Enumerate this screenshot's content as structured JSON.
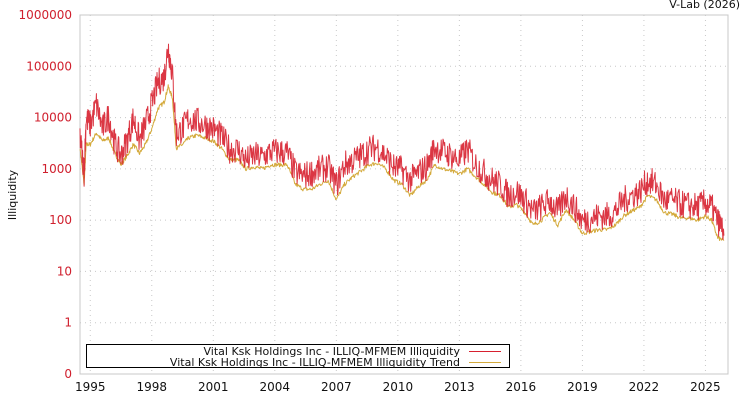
{
  "credit": "V-Lab (2026)",
  "chart_data": {
    "type": "line",
    "title": "",
    "xlabel": "",
    "ylabel": "Illiquidity",
    "yscale": "log",
    "ylim": [
      0,
      1000000
    ],
    "yticks": [
      "1000000",
      "100000",
      "10000",
      "1000",
      "100",
      "10",
      "1",
      "0"
    ],
    "xticks": [
      "1995",
      "1998",
      "2001",
      "2004",
      "2007",
      "2010",
      "2013",
      "2016",
      "2019",
      "2022",
      "2025"
    ],
    "xlim": [
      1994.5,
      2026.1
    ],
    "grid": true,
    "legend_position": "bottom-left inside plot",
    "colors": {
      "illiquidity": "#d7202f",
      "trend": "#d4aa3c",
      "ytick": "#d0202e",
      "grid": "#c8c8c8"
    },
    "series": [
      {
        "name": "Vital Ksk Holdings Inc - ILLIQ-MFMEM Illiquidity",
        "x": [
          1994.5,
          1994.7,
          1994.8,
          1995.0,
          1995.3,
          1995.6,
          1995.9,
          1996.2,
          1996.5,
          1996.8,
          1997.1,
          1997.4,
          1997.7,
          1998.0,
          1998.3,
          1998.6,
          1998.8,
          1999.0,
          1999.2,
          1999.5,
          1999.8,
          2000.2,
          2000.6,
          2001.0,
          2001.4,
          2001.8,
          2002.2,
          2002.6,
          2003.0,
          2003.4,
          2003.8,
          2004.2,
          2004.6,
          2005.0,
          2005.4,
          2005.8,
          2006.2,
          2006.6,
          2007.0,
          2007.4,
          2007.8,
          2008.2,
          2008.6,
          2009.0,
          2009.4,
          2009.8,
          2010.2,
          2010.6,
          2011.0,
          2011.4,
          2011.8,
          2012.2,
          2012.6,
          2013.0,
          2013.4,
          2013.8,
          2014.2,
          2014.6,
          2015.0,
          2015.4,
          2015.8,
          2016.2,
          2016.6,
          2017.0,
          2017.4,
          2017.8,
          2018.2,
          2018.6,
          2019.0,
          2019.4,
          2019.8,
          2020.2,
          2020.6,
          2021.0,
          2021.4,
          2021.8,
          2022.2,
          2022.6,
          2023.0,
          2023.4,
          2023.8,
          2024.2,
          2024.6,
          2025.0,
          2025.3,
          2025.6,
          2025.9
        ],
        "values": [
          3500,
          700,
          8000,
          6000,
          15000,
          5000,
          9000,
          2500,
          1500,
          3000,
          8000,
          3000,
          6000,
          15000,
          40000,
          50000,
          200000,
          60000,
          4000,
          5000,
          8000,
          7000,
          6000,
          5000,
          3500,
          2000,
          2000,
          1200,
          1500,
          1400,
          1800,
          1800,
          1700,
          700,
          600,
          700,
          800,
          900,
          400,
          1000,
          1200,
          1500,
          2000,
          2200,
          1500,
          900,
          800,
          500,
          700,
          900,
          2200,
          1800,
          1500,
          1200,
          2000,
          1000,
          700,
          500,
          400,
          250,
          300,
          200,
          120,
          150,
          200,
          120,
          250,
          150,
          80,
          90,
          100,
          100,
          120,
          200,
          250,
          300,
          500,
          400,
          200,
          200,
          170,
          160,
          150,
          180,
          150,
          80,
          50
        ]
      },
      {
        "name": "Vital Ksk Holdings Inc - ILLIQ-MFMEM Illiquidity Trend",
        "x": [
          1994.5,
          1994.7,
          1994.8,
          1995.0,
          1995.3,
          1995.6,
          1995.9,
          1996.2,
          1996.5,
          1996.8,
          1997.1,
          1997.4,
          1997.7,
          1998.0,
          1998.3,
          1998.6,
          1998.8,
          1999.0,
          1999.2,
          1999.5,
          1999.8,
          2000.2,
          2000.6,
          2001.0,
          2001.4,
          2001.8,
          2002.2,
          2002.6,
          2003.0,
          2003.4,
          2003.8,
          2004.2,
          2004.6,
          2005.0,
          2005.4,
          2005.8,
          2006.2,
          2006.6,
          2007.0,
          2007.4,
          2007.8,
          2008.2,
          2008.6,
          2009.0,
          2009.4,
          2009.8,
          2010.2,
          2010.6,
          2011.0,
          2011.4,
          2011.8,
          2012.2,
          2012.6,
          2013.0,
          2013.4,
          2013.8,
          2014.2,
          2014.6,
          2015.0,
          2015.4,
          2015.8,
          2016.2,
          2016.6,
          2017.0,
          2017.4,
          2017.8,
          2018.2,
          2018.6,
          2019.0,
          2019.4,
          2019.8,
          2020.2,
          2020.6,
          2021.0,
          2021.4,
          2021.8,
          2022.2,
          2022.6,
          2023.0,
          2023.4,
          2023.8,
          2024.2,
          2024.6,
          2025.0,
          2025.3,
          2025.6,
          2025.9
        ],
        "values": [
          2500,
          500,
          3000,
          3000,
          5000,
          3500,
          4000,
          2000,
          1200,
          1800,
          3000,
          2000,
          3000,
          6000,
          15000,
          20000,
          40000,
          25000,
          2500,
          3000,
          4000,
          4500,
          4000,
          3500,
          2500,
          1500,
          1500,
          1000,
          1100,
          1000,
          1200,
          1200,
          1200,
          500,
          400,
          400,
          500,
          600,
          250,
          500,
          700,
          900,
          1200,
          1300,
          1000,
          600,
          500,
          300,
          450,
          600,
          1200,
          1000,
          900,
          800,
          1000,
          700,
          500,
          350,
          300,
          180,
          200,
          140,
          80,
          100,
          140,
          80,
          160,
          100,
          55,
          60,
          65,
          65,
          80,
          120,
          150,
          180,
          300,
          250,
          140,
          130,
          110,
          110,
          100,
          120,
          100,
          45,
          40
        ]
      }
    ]
  }
}
